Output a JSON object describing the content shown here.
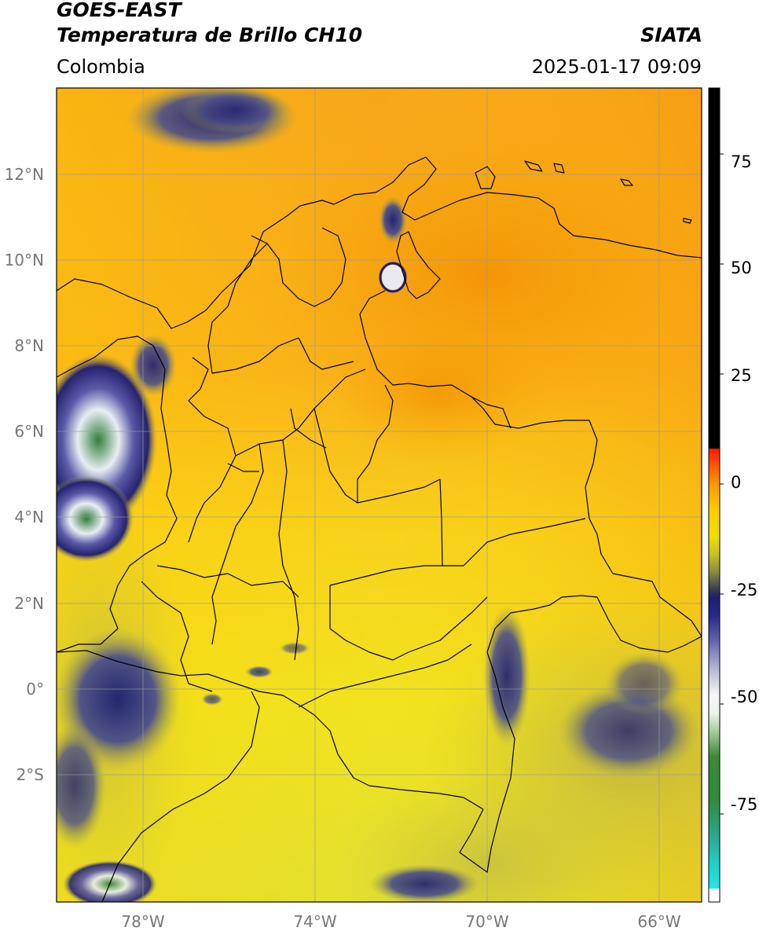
{
  "header": {
    "satellite": "GOES-EAST",
    "product": "Temperatura de Brillo CH10",
    "region": "Colombia",
    "source": "SIATA",
    "datetime": "2025-01-17 09:09"
  },
  "map": {
    "lon_range": [
      -80,
      -65
    ],
    "lat_range": [
      -5,
      14
    ],
    "lat_ticks": [
      {
        "value": 12,
        "label": "12°N"
      },
      {
        "value": 10,
        "label": "10°N"
      },
      {
        "value": 8,
        "label": "8°N"
      },
      {
        "value": 6,
        "label": "6°N"
      },
      {
        "value": 4,
        "label": "4°N"
      },
      {
        "value": 2,
        "label": "2°N"
      },
      {
        "value": 0,
        "label": "0°"
      },
      {
        "value": -2,
        "label": "2°S"
      }
    ],
    "lon_ticks": [
      {
        "value": -78,
        "label": "78°W"
      },
      {
        "value": -74,
        "label": "74°W"
      },
      {
        "value": -70,
        "label": "70°W"
      },
      {
        "value": -66,
        "label": "66°W"
      }
    ]
  },
  "colorbar": {
    "range": [
      -95,
      90
    ],
    "ticks": [
      {
        "value": 75,
        "label": "75"
      },
      {
        "value": 50,
        "label": "50"
      },
      {
        "value": 25,
        "label": "25"
      },
      {
        "value": 0,
        "label": "0"
      },
      {
        "value": -25,
        "label": "-25"
      },
      {
        "value": -50,
        "label": "-50"
      },
      {
        "value": -75,
        "label": "-75"
      }
    ]
  }
}
